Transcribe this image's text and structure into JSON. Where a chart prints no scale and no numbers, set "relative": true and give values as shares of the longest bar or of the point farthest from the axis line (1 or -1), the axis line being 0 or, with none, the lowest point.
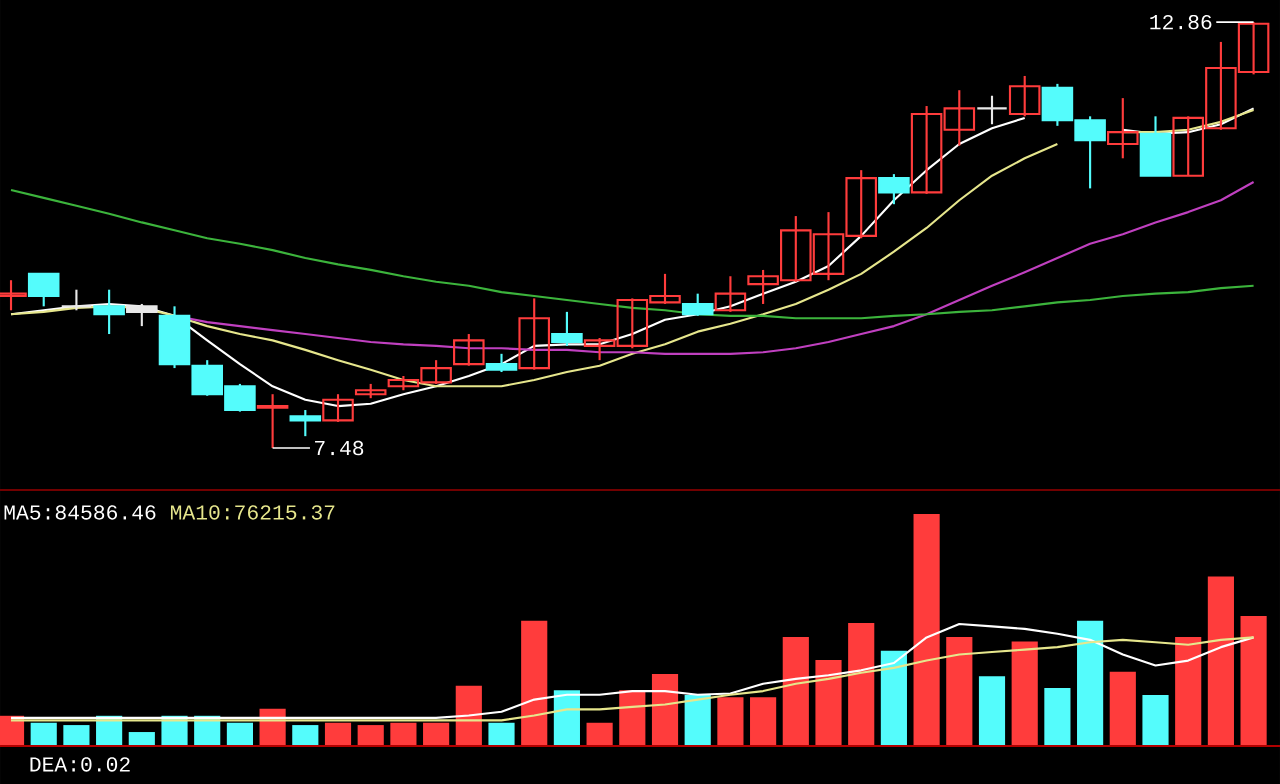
{
  "chart_data": [
    {
      "type": "candlestick",
      "categories": [
        null,
        null,
        null,
        null,
        null,
        null,
        null,
        null,
        null,
        null,
        null,
        null,
        null,
        null,
        null,
        null,
        null,
        null,
        null,
        null,
        null,
        null,
        null,
        null,
        null,
        null,
        null,
        null,
        null,
        null,
        null,
        null,
        null,
        null,
        null,
        null,
        null,
        null,
        null
      ],
      "ohlc": [
        [
          9.4,
          9.6,
          9.22,
          9.43
        ],
        [
          9.68,
          9.68,
          9.27,
          9.4
        ],
        [
          9.27,
          9.48,
          9.22,
          9.27
        ],
        [
          9.27,
          9.48,
          8.92,
          9.17
        ],
        [
          9.27,
          9.3,
          9.02,
          9.2
        ],
        [
          9.15,
          9.27,
          8.49,
          8.54
        ],
        [
          8.52,
          8.59,
          8.14,
          8.16
        ],
        [
          8.26,
          8.29,
          7.94,
          7.96
        ],
        [
          7.99,
          8.16,
          7.48,
          8.01
        ],
        [
          7.88,
          7.96,
          7.63,
          7.83
        ],
        [
          7.83,
          8.16,
          7.81,
          8.09
        ],
        [
          8.16,
          8.29,
          8.11,
          8.21
        ],
        [
          8.26,
          8.39,
          8.21,
          8.34
        ],
        [
          8.31,
          8.59,
          8.29,
          8.49
        ],
        [
          8.54,
          8.92,
          8.52,
          8.84
        ],
        [
          8.54,
          8.67,
          8.44,
          8.47
        ],
        [
          8.49,
          9.37,
          8.47,
          9.12
        ],
        [
          8.92,
          9.2,
          8.77,
          8.82
        ],
        [
          8.77,
          8.87,
          8.59,
          8.84
        ],
        [
          8.77,
          9.37,
          8.74,
          9.35
        ],
        [
          9.32,
          9.68,
          9.3,
          9.4
        ],
        [
          9.3,
          9.43,
          9.15,
          9.17
        ],
        [
          9.22,
          9.65,
          9.2,
          9.43
        ],
        [
          9.55,
          9.73,
          9.3,
          9.65
        ],
        [
          9.6,
          10.41,
          9.58,
          10.23
        ],
        [
          9.68,
          10.46,
          9.6,
          10.18
        ],
        [
          10.16,
          10.99,
          10.13,
          10.89
        ],
        [
          10.89,
          10.94,
          10.56,
          10.71
        ],
        [
          10.71,
          11.8,
          10.69,
          11.7
        ],
        [
          11.5,
          12.0,
          11.3,
          11.77
        ],
        [
          11.77,
          11.93,
          11.57,
          11.77
        ],
        [
          11.7,
          12.18,
          11.67,
          12.05
        ],
        [
          12.03,
          12.08,
          11.55,
          11.62
        ],
        [
          11.62,
          11.67,
          10.76,
          11.37
        ],
        [
          11.32,
          11.9,
          11.14,
          11.47
        ],
        [
          11.45,
          11.67,
          10.92,
          10.92
        ],
        [
          10.92,
          11.67,
          10.92,
          11.65
        ],
        [
          11.52,
          12.61,
          11.5,
          12.28
        ],
        [
          12.23,
          12.86,
          12.2,
          12.84
        ]
      ],
      "colors": [
        "#ff3c3c",
        "#54fcfc",
        "#e8e8e8",
        "#54fcfc",
        "#e8e8e8",
        "#54fcfc",
        "#54fcfc",
        "#54fcfc",
        "#ff3c3c",
        "#54fcfc",
        "#ff3c3c",
        "#ff3c3c",
        "#ff3c3c",
        "#ff3c3c",
        "#ff3c3c",
        "#54fcfc",
        "#ff3c3c",
        "#54fcfc",
        "#ff3c3c",
        "#ff3c3c",
        "#ff3c3c",
        "#54fcfc",
        "#ff3c3c",
        "#ff3c3c",
        "#ff3c3c",
        "#ff3c3c",
        "#ff3c3c",
        "#54fcfc",
        "#ff3c3c",
        "#ff3c3c",
        "#e8e8e8",
        "#ff3c3c",
        "#54fcfc",
        "#54fcfc",
        "#ff3c3c",
        "#54fcfc",
        "#ff3c3c",
        "#ff3c3c",
        "#ff3c3c"
      ],
      "series": [
        {
          "type": "line",
          "color": "#ffffff",
          "values": [
            9.17,
            9.22,
            9.27,
            9.3,
            9.27,
            9.15,
            8.84,
            8.54,
            8.26,
            8.09,
            8.01,
            8.04,
            8.16,
            8.26,
            8.39,
            8.54,
            8.77,
            8.79,
            8.79,
            8.92,
            9.1,
            9.17,
            9.27,
            9.43,
            9.58,
            9.78,
            10.16,
            10.61,
            10.99,
            11.32,
            11.52,
            11.65,
            null,
            null,
            11.5,
            11.45,
            11.47,
            11.57,
            11.77
          ]
        },
        {
          "type": "line",
          "color": "#e6e68c",
          "values": [
            9.17,
            9.2,
            9.25,
            9.27,
            9.25,
            9.15,
            9.02,
            8.92,
            8.84,
            8.72,
            8.59,
            8.47,
            8.34,
            8.26,
            8.26,
            8.26,
            8.34,
            8.44,
            8.52,
            8.67,
            8.79,
            8.95,
            9.05,
            9.17,
            9.3,
            9.48,
            9.68,
            9.96,
            10.26,
            10.61,
            10.92,
            11.14,
            11.32,
            null,
            11.47,
            11.47,
            11.5,
            11.6,
            11.75
          ]
        },
        {
          "type": "line",
          "color": "#c040c0",
          "values": [
            null,
            null,
            null,
            null,
            null,
            9.15,
            9.07,
            9.02,
            8.97,
            8.92,
            8.87,
            8.82,
            8.79,
            8.77,
            8.74,
            8.74,
            8.72,
            8.72,
            8.69,
            8.69,
            8.67,
            8.67,
            8.67,
            8.69,
            8.74,
            8.82,
            8.92,
            9.02,
            9.17,
            9.35,
            9.53,
            9.7,
            9.88,
            10.06,
            10.18,
            10.33,
            10.46,
            10.61,
            10.84
          ]
        },
        {
          "type": "line",
          "color": "#3cb43c",
          "values": [
            10.74,
            10.64,
            10.54,
            10.44,
            10.33,
            10.23,
            10.13,
            10.06,
            9.98,
            9.88,
            9.8,
            9.73,
            9.65,
            9.58,
            9.53,
            9.45,
            9.4,
            9.35,
            9.3,
            9.25,
            9.22,
            9.17,
            9.15,
            9.15,
            9.12,
            9.12,
            9.12,
            9.15,
            9.17,
            9.2,
            9.22,
            9.27,
            9.32,
            9.35,
            9.4,
            9.43,
            9.45,
            9.5,
            9.53
          ]
        }
      ],
      "annotations": [
        "12.86",
        "7.48"
      ]
    },
    {
      "type": "bar",
      "relative": true,
      "categories": [
        null,
        null,
        null,
        null,
        null,
        null,
        null,
        null,
        null,
        null,
        null,
        null,
        null,
        null,
        null,
        null,
        null,
        null,
        null,
        null,
        null,
        null,
        null,
        null,
        null,
        null,
        null,
        null,
        null,
        null,
        null,
        null,
        null,
        null,
        null,
        null,
        null,
        null,
        null
      ],
      "series": [
        {
          "type": "bar",
          "colors": [
            "#ff3c3c",
            "#54fcfc",
            "#54fcfc",
            "#54fcfc",
            "#54fcfc",
            "#54fcfc",
            "#54fcfc",
            "#54fcfc",
            "#ff3c3c",
            "#54fcfc",
            "#ff3c3c",
            "#ff3c3c",
            "#ff3c3c",
            "#ff3c3c",
            "#ff3c3c",
            "#54fcfc",
            "#ff3c3c",
            "#54fcfc",
            "#ff3c3c",
            "#ff3c3c",
            "#ff3c3c",
            "#54fcfc",
            "#ff3c3c",
            "#ff3c3c",
            "#ff3c3c",
            "#ff3c3c",
            "#ff3c3c",
            "#54fcfc",
            "#ff3c3c",
            "#ff3c3c",
            "#54fcfc",
            "#ff3c3c",
            "#54fcfc",
            "#54fcfc",
            "#ff3c3c",
            "#54fcfc",
            "#ff3c3c",
            "#ff3c3c",
            "#ff3c3c"
          ],
          "values": [
            0.13,
            0.1,
            0.09,
            0.13,
            0.06,
            0.13,
            0.13,
            0.1,
            0.16,
            0.09,
            0.1,
            0.09,
            0.1,
            0.1,
            0.26,
            0.1,
            0.54,
            0.24,
            0.1,
            0.24,
            0.31,
            0.22,
            0.21,
            0.21,
            0.47,
            0.37,
            0.53,
            0.41,
            1,
            0.47,
            0.3,
            0.45,
            0.25,
            0.54,
            0.32,
            0.22,
            0.47,
            0.73,
            0.56
          ]
        }
      ],
      "annotations": [
        "DEA:0.02"
      ]
    },
    {
      "type": "line",
      "relative": true,
      "categories": [
        null,
        null,
        null,
        null,
        null,
        null,
        null,
        null,
        null,
        null,
        null,
        null,
        null,
        null,
        null,
        null,
        null,
        null,
        null,
        null,
        null,
        null,
        null,
        null,
        null,
        null,
        null,
        null,
        null,
        null,
        null,
        null,
        null,
        null,
        null,
        null,
        null,
        null,
        null
      ],
      "series": [
        {
          "name": "MA5:84586.46",
          "color": "#ffffff",
          "values": [
            0.23,
            0.23,
            0.23,
            0.23,
            0.23,
            0.23,
            0.23,
            0.23,
            0.23,
            0.23,
            0.23,
            0.23,
            0.23,
            0.23,
            0.25,
            0.28,
            0.38,
            0.42,
            0.42,
            0.45,
            0.45,
            0.42,
            0.43,
            0.51,
            0.55,
            0.58,
            0.62,
            0.68,
            0.89,
            1,
            0.98,
            0.96,
            0.92,
            0.87,
            0.75,
            0.66,
            0.7,
            0.81,
            0.89
          ]
        },
        {
          "name": "MA10:76215.37",
          "color": "#e6e68c",
          "values": [
            0.21,
            0.21,
            0.21,
            0.21,
            0.21,
            0.21,
            0.21,
            0.21,
            0.21,
            0.21,
            0.21,
            0.21,
            0.21,
            0.21,
            0.21,
            0.21,
            0.25,
            0.3,
            0.3,
            0.32,
            0.34,
            0.38,
            0.42,
            0.45,
            0.51,
            0.55,
            0.6,
            0.64,
            0.7,
            0.75,
            0.77,
            0.79,
            0.81,
            0.85,
            0.87,
            0.85,
            0.83,
            0.87,
            0.89
          ]
        }
      ]
    }
  ]
}
